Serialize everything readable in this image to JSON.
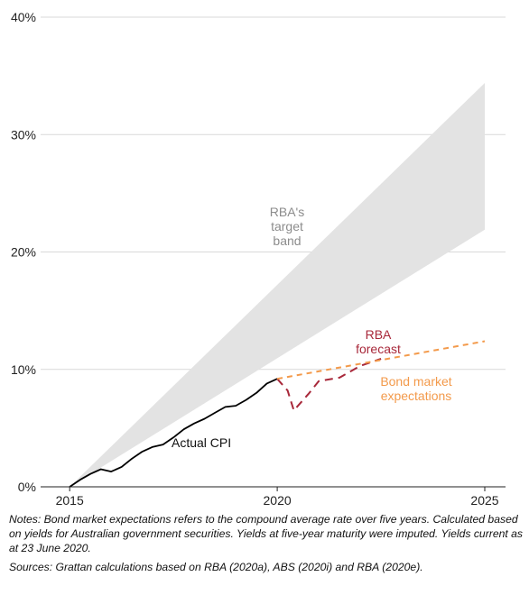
{
  "chart_data": {
    "type": "line",
    "xlim": [
      2014.3,
      2025.5
    ],
    "ylim": [
      0,
      40
    ],
    "y_ticks": [
      0,
      10,
      20,
      30,
      40
    ],
    "y_tick_labels": [
      "0%",
      "10%",
      "20%",
      "30%",
      "40%"
    ],
    "x_ticks": [
      2015,
      2020,
      2025
    ],
    "x_tick_labels": [
      "2015",
      "2020",
      "2025"
    ],
    "grid": "horizontal",
    "band": {
      "label": "RBA's target band",
      "color": "#e3e3e3",
      "x": [
        2015,
        2025
      ],
      "lower": [
        0,
        21.9
      ],
      "upper": [
        0,
        34.4
      ]
    },
    "series": [
      {
        "name": "Actual CPI",
        "color": "#000000",
        "style": "solid",
        "x": [
          2015.0,
          2015.25,
          2015.5,
          2015.75,
          2016.0,
          2016.25,
          2016.5,
          2016.75,
          2017.0,
          2017.25,
          2017.5,
          2017.75,
          2018.0,
          2018.25,
          2018.5,
          2018.75,
          2019.0,
          2019.25,
          2019.5,
          2019.75,
          2020.0
        ],
        "values": [
          0.0,
          0.6,
          1.1,
          1.5,
          1.3,
          1.7,
          2.4,
          3.0,
          3.4,
          3.6,
          4.2,
          4.9,
          5.4,
          5.8,
          6.3,
          6.8,
          6.9,
          7.4,
          8.0,
          8.8,
          9.2
        ]
      },
      {
        "name": "RBA forecast",
        "color": "#a8283a",
        "style": "dashed",
        "x": [
          2020.0,
          2020.25,
          2020.4,
          2020.75,
          2021.0,
          2021.5,
          2022.0,
          2022.5
        ],
        "values": [
          9.2,
          8.2,
          6.5,
          7.9,
          9.0,
          9.3,
          10.3,
          10.9
        ]
      },
      {
        "name": "Bond market expectations",
        "color": "#f39a4b",
        "style": "dashed",
        "x": [
          2020.0,
          2025.0
        ],
        "values": [
          9.2,
          12.4
        ]
      }
    ],
    "labels": {
      "band": [
        "RBA's",
        "target",
        "band"
      ],
      "actual": "Actual CPI",
      "forecast": [
        "RBA",
        "forecast"
      ],
      "bond": [
        "Bond market",
        "expectations"
      ]
    }
  },
  "notes": "Notes: Bond market expectations refers to the compound average rate over five years. Calculated based on yields for Australian government securities. Yields at five-year maturity were imputed. Yields current as at 23 June 2020.",
  "sources": "Sources: Grattan calculations based on RBA (2020a), ABS (2020i) and RBA (2020e)."
}
